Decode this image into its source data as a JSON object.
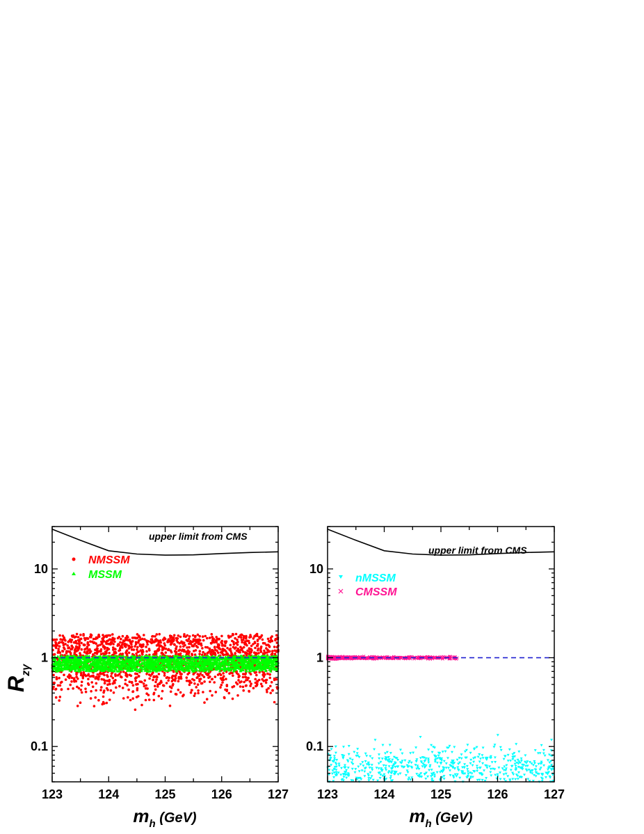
{
  "chart_data": [
    {
      "type": "scatter",
      "panel": "left",
      "xlabel": "m",
      "xlabel_sub": "h",
      "xlabel_unit": " (GeV)",
      "ylabel": "R",
      "ylabel_sub": "zγ",
      "xlim": [
        123,
        127
      ],
      "ylim": [
        0.04,
        30
      ],
      "yscale": "log",
      "x_ticks": [
        "123",
        "124",
        "125",
        "126",
        "127"
      ],
      "y_ticks": [
        "0.1",
        "1",
        "10"
      ],
      "annotation": "upper limit from CMS",
      "reference_line": {
        "y": 1,
        "style": "dashed",
        "color": "#1f1fd0"
      },
      "upper_limit": {
        "x": [
          123,
          123.5,
          124,
          124.5,
          125,
          125.5,
          126,
          126.5,
          127
        ],
        "y": [
          28,
          21,
          16,
          14.7,
          14.3,
          14.4,
          14.9,
          15.3,
          15.6
        ]
      },
      "series": [
        {
          "name": "NMSSM",
          "marker": "circle",
          "color": "#ff0000",
          "count": 1800,
          "x_range": [
            123,
            127
          ],
          "y_band": [
            0.25,
            1.85
          ],
          "y_log_center": 0.96,
          "y_log_sigma": 0.2
        },
        {
          "name": "MSSM",
          "marker": "triangle",
          "color": "#00ff00",
          "count": 2200,
          "x_range": [
            123,
            127
          ],
          "y_band": [
            0.7,
            1.05
          ],
          "y_log_center": 0.87,
          "y_log_sigma": 0.06
        }
      ]
    },
    {
      "type": "scatter",
      "panel": "right",
      "xlabel": "m",
      "xlabel_sub": "h",
      "xlabel_unit": " (GeV)",
      "xlim": [
        123,
        127
      ],
      "ylim": [
        0.04,
        30
      ],
      "yscale": "log",
      "x_ticks": [
        "123",
        "124",
        "125",
        "126",
        "127"
      ],
      "y_ticks": [
        "0.1",
        "1",
        "10"
      ],
      "annotation": "upper limit from CMS",
      "reference_line": {
        "y": 1,
        "style": "dashed",
        "color": "#1f1fd0"
      },
      "upper_limit": {
        "x": [
          123,
          123.5,
          124,
          124.5,
          125,
          125.5,
          126,
          126.5,
          127
        ],
        "y": [
          28,
          21,
          16,
          14.7,
          14.3,
          14.4,
          14.9,
          15.3,
          15.6
        ]
      },
      "series": [
        {
          "name": "nMSSM",
          "marker": "triangle-down",
          "color": "#00ffff",
          "count": 600,
          "x_range": [
            123,
            127
          ],
          "y_band": [
            0.04,
            0.14
          ],
          "y_log_center": 0.06,
          "y_log_sigma": 0.12
        },
        {
          "name": "CMSSM",
          "marker": "cross",
          "color": "#ff1493",
          "count": 450,
          "x_range": [
            123,
            125.3
          ],
          "y_band": [
            0.96,
            1.04
          ],
          "y_log_center": 1.0,
          "y_log_sigma": 0.008
        }
      ]
    }
  ]
}
